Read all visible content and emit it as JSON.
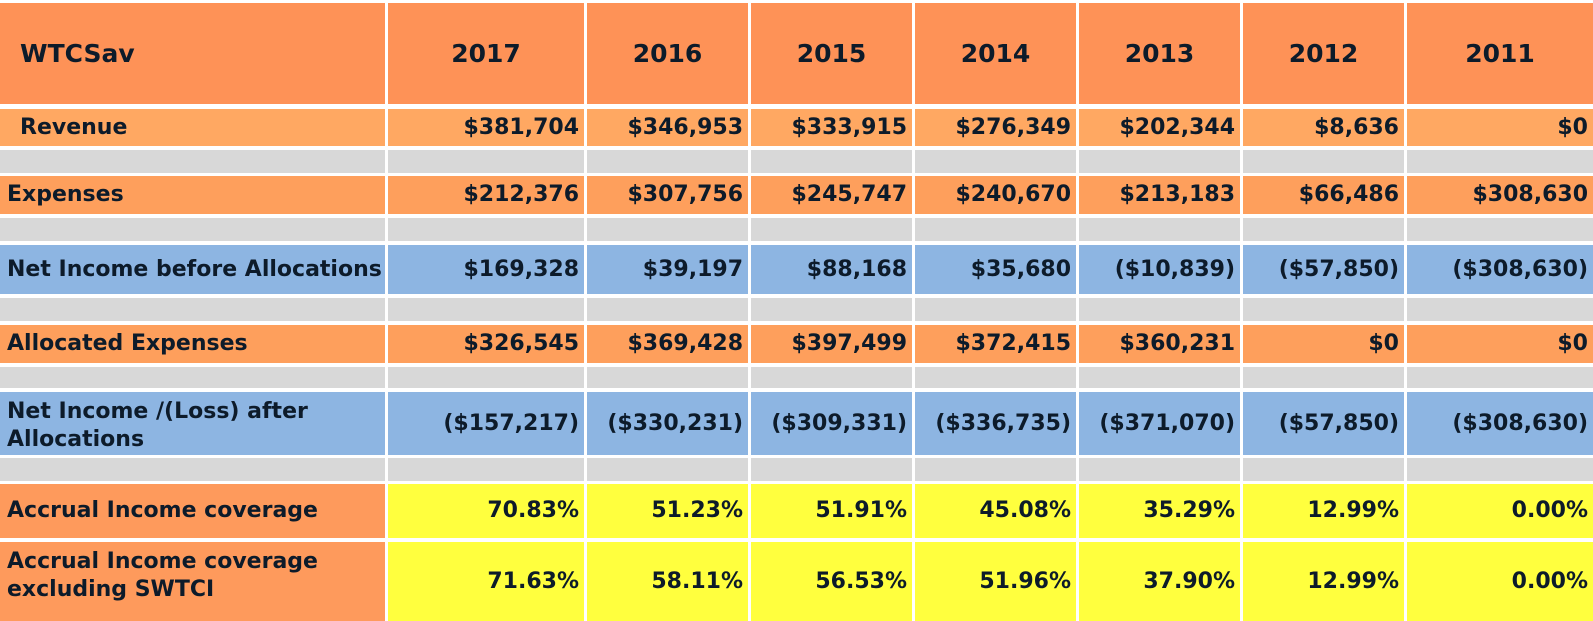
{
  "table": {
    "corner_label": "WTCSav",
    "years": [
      "2017",
      "2016",
      "2015",
      "2014",
      "2013",
      "2012",
      "2011"
    ],
    "rows": [
      {
        "label": "Revenue",
        "values": [
          "$381,704",
          "$346,953",
          "$333,915",
          "$276,349",
          "$202,344",
          "$8,636",
          "$0"
        ]
      },
      {
        "label": "Expenses",
        "values": [
          "$212,376",
          "$307,756",
          "$245,747",
          "$240,670",
          "$213,183",
          "$66,486",
          "$308,630"
        ]
      },
      {
        "label": "Net Income before Allocations",
        "values": [
          "$169,328",
          "$39,197",
          "$88,168",
          "$35,680",
          "($10,839)",
          "($57,850)",
          "($308,630)"
        ]
      },
      {
        "label": "Allocated Expenses",
        "values": [
          "$326,545",
          "$369,428",
          "$397,499",
          "$372,415",
          "$360,231",
          "$0",
          "$0"
        ]
      },
      {
        "label": "Net Income /(Loss) after Allocations",
        "values": [
          "($157,217)",
          "($330,231)",
          "($309,331)",
          "($336,735)",
          "($371,070)",
          "($57,850)",
          "($308,630)"
        ]
      },
      {
        "label": "Accrual Income coverage",
        "values": [
          "70.83%",
          "51.23%",
          "51.91%",
          "45.08%",
          "35.29%",
          "12.99%",
          "0.00%"
        ]
      },
      {
        "label": "Accrual Income coverage excluding SWTCI",
        "values": [
          "71.63%",
          "58.11%",
          "56.53%",
          "51.96%",
          "37.90%",
          "12.99%",
          "0.00%"
        ]
      }
    ]
  }
}
